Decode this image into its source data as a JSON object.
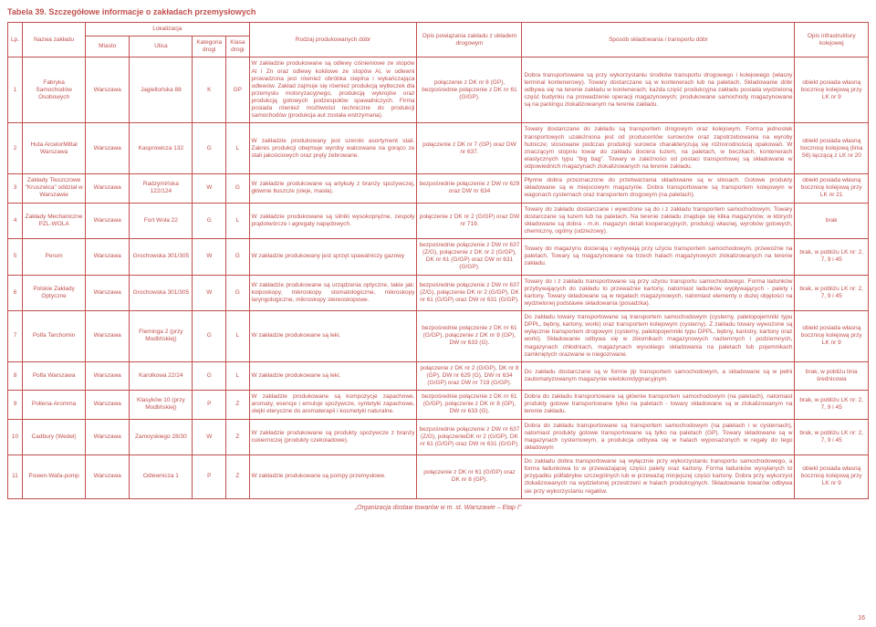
{
  "title": "Tabela 39. Szczegółowe informacje o zakładach przemysłowych",
  "footer": "„Organizacja dostaw towarów w m. st. Warszawie – Etap I”",
  "page_number": "16",
  "headers": {
    "lp": "Lp.",
    "nazwa": "Nazwa zakładu",
    "lokalizacja": "Lokalizacja",
    "miasto": "Miasto",
    "ulica": "Ulica",
    "kategoria": "Kategoria drogi",
    "klasa": "Klasa drogi",
    "rodzaj": "Rodzaj produkowanych dóbr",
    "powiazanie": "Opis powiązania zakładu z układem drogowym",
    "sposob": "Sposób składowania i transportu dóbr",
    "infrastruktura": "Opis infrastruktury kolejowej"
  },
  "rows": [
    {
      "lp": "1",
      "nazwa": "Fabryka Samochodów Osobowych",
      "miasto": "Warszawa",
      "ulica": "Jagiellońska 88",
      "kat": "K",
      "kla": "GP",
      "rodzaj": "W zakładzie produkowane są odlewy ciśnieniowe ze stopów Al i Zn oraz odlewy kokilowe ze stopów Al, w odlewni prowadzona jest również obróbka cieplna i wykańczająca odlewów. Zakład zajmuje się również produkcją wytłoczek dla przemysłu motoryzacyjnego, produkcją wykrojów oraz produkcją gotowych podzespołów spawalniczych. Firma posiada również możliwości techniczne do produkcji samochodów (produkcja aut została wstrzymana).",
      "pow": "połączenie z DK nr 8 (GP), bezpośrednie połączenie z DK nr 61 (G/GP).",
      "spos": "Dobra transportowane są przy wykorzystaniu środków transportu drogowego i kolejowego (własny terminal kontenerowy). Towary dostarczane są w kontenerach lub na paletach. Składowanie dóbr odbywa się na terenie zakładu w kontenerach; każda część produkcyjna zakładu posiada wydzieloną część budynku na prowadzenie operacji magazynowych; produkowane samochody magazynowane są na parkingu zlokalizowanym na terenie zakładu.",
      "infr": "obiekt posiada własną bocznicę kolejową przy LK nr 9"
    },
    {
      "lp": "2",
      "nazwa": "Huta ArcelorMittal Warszawa",
      "miasto": "Warszawa",
      "ulica": "Kasprowicza 132",
      "kat": "G",
      "kla": "L",
      "rodzaj": "W zakładzie produkowany jest szeroki asortyment stali. Zakres produkcji obejmuje wyroby walcowane na gorąco ze stali jakościowych oraz pręty żebrowane.",
      "pow": "połączenie z DK nr 7 (GP) oraz DW nr 637.",
      "spos": "Towary dostarczane do zakładu są transportem drogowym oraz kolejowym. Forma jednostek transportowych uzależniona jest od producentów surowców oraz zapotrzebowania na wyroby hutnicze; stosowane podczas produkcji surowce charakteryzują się różnorodnością opakowań. W znaczącym stopniu towar do zakładu dociera luzem, na paletach, w beczkach, kontenerach elastycznych typu \"big bag\". Towary w zależności od postaci transportowej są składowane w odpowiednich magazynach zlokalizowanych na terenie zakładu.",
      "infr": "obiekt posiada własną bocznicę kolejową (linia S6) łączącą z LK nr 20"
    },
    {
      "lp": "3",
      "nazwa": "Zakłady Tłuszczowe \"Kruszwica\" oddział w Warszawie",
      "miasto": "Warszawa",
      "ulica": "Radzymińska 122/124",
      "kat": "W",
      "kla": "G",
      "rodzaj": "W zakładzie produkowane są artykuły z branży spożywczej, głównie tłuszcze (oleje, masła).",
      "pow": "bezpośrednie połączenie z DW nr 629 oraz DW nr 634",
      "spos": "Płynne dobra przeznaczone do przetwarzania składowane są w silosach. Gotowe produkty składowane są w miejscowym magazynie. Dobra transportowane są transportem kolejowym w wagonach cysternach oraz transportem drogowym (na paletach).",
      "infr": "obiekt posiada własną bocznicę kolejową przy LK nr 21"
    },
    {
      "lp": "4",
      "nazwa": "Zakłady Mechaniczne PZL-WOLA",
      "miasto": "Warszawa",
      "ulica": "Fort Wola 22",
      "kat": "G",
      "kla": "L",
      "rodzaj": "W zakładzie produkowane są silniki wysokoprężne, zespoły prądotwórcze i agregaty napędowych.",
      "pow": "połączenie z DK nr 2 (G/GP) oraz DW nr 719.",
      "spos": "Towary do zakładu dostarczane i wywożone są do i z zakładu transportem samochodowym. Towary dostarczane są luzem lub na paletach. Na terenie zakładu znajduje się kilka magazynów, w których składowane są dobra - m.in. magazyn detali kooperacyjnych, produkcji własnej, wyrobów gotowych, chemiczny, ogólny (odzieżowy).",
      "infr": "brak"
    },
    {
      "lp": "5",
      "nazwa": "Perum",
      "miasto": "Warszawa",
      "ulica": "Grochowska 301/305",
      "kat": "W",
      "kla": "G",
      "rodzaj": "W zakładzie produkowany jest sprzęt spawalniczy gazowy",
      "pow": "bezpośrednie połączenie z DW nr 637 (Z/G), połączenie z DK nr 2 (G/GP), DK nr 61 (G/GP) oraz DW nr 631 (G/GP).",
      "spos": "Towary do magazynu docierają i wybywają przy użyciu transportem samochodowym, przewożne na paletach. Towary są magazynowane na trzech halach magazynowych zlokalizowanych na terenie zakładu.",
      "infr": "brak, w pobliżu LK nr: 2, 7, 9 i 45"
    },
    {
      "lp": "6",
      "nazwa": "Polskie Zakłady Optyczne",
      "miasto": "Warszawa",
      "ulica": "Grochowska 301/305",
      "kat": "W",
      "kla": "G",
      "rodzaj": "W zakładzie produkowane są urządzenia optyczne, takie jak: kolposkopy, mikroskopy stomatologiczne, mikroskopy laryngologiczne, mikroskopy stereoskopowe.",
      "pow": "bezpośrednie połączenie z DW nr 637 (Z/G), połączenie DK nr 2 (G/GP), DK nr 61 (G/GP) oraz DW nr 631 (G/GP).",
      "spos": "Towary do i z zakładu transportowane są przy użyciu transportu samochodowego. Forma ładunków przybywających do zakładu to przeważnie kartony, natomiast ładunków wypływających - palety i kartony. Towary składowane są w regałach magazynowych, natomiast elementy o dużej objętości na wydzielonej podstawie składowania (posadzka).",
      "infr": "brak, w pobliżu LK nr: 2, 7, 9 i 45"
    },
    {
      "lp": "7",
      "nazwa": "Polfa Tarchomin",
      "miasto": "Warszawa",
      "ulica": "Fleminga 2 (przy Modlińskiej)",
      "kat": "G",
      "kla": "L",
      "rodzaj": "W zakładzie produkowane są leki.",
      "pow": "bezpośrednie połączenie z DK nr 61 (G/GP), połączenie z DK nr 8 (GP), DW nr 633 (G).",
      "spos": "Do zakładu towary transportowane są transportem samochodowym (cysterny, paletopojemniki typu DPPL, bębny, kartony, worki) oraz transportem kolejowym (cysterny). Z zakładu towary wywożone są wyłącznie transportem drogowym (cysterny, paletopojemniki typu DPPL, bębny, kanistry, kartony oraz worki). Składowanie odbywa się w zbiornikach magazynowych naziemnych i podziemnych, magazynach chłodniach, magazynach wysokiego składowania na paletach lub pojemnikach zamkniętych orazwane w niegozrwane.",
      "infr": "obiekt posiada własną bocznicę kolejową przy LK nr 9"
    },
    {
      "lp": "8",
      "nazwa": "Polfa Warszawa",
      "miasto": "Warszawa",
      "ulica": "Karolkowa 22/24",
      "kat": "G",
      "kla": "L",
      "rodzaj": "W zakładzie produkowane są leki.",
      "pow": "połączenie z DK nr 2 (G/GP), DK nr 8 (GP), DW nr 629 (G), DW nr 634 (G/GP) oraz DW nr 719 (G/GP).",
      "spos": "Do zakładu dostarczane są w formie jlp transportem samochodowym, a składowane są w pełni zautomatyzowanym magazynie wielokondygnacyjnym.",
      "infr": "brak, w pobliżu linia średnicowa"
    },
    {
      "lp": "9",
      "nazwa": "Pollena-Aromma",
      "miasto": "Warszawa",
      "ulica": "Klasyków 10 (przy Modlińskiej)",
      "kat": "P",
      "kla": "Z",
      "rodzaj": "W zakładzie produkowane są kompozycje zapachowe, aromaty, esencje i emulsje spożywcze, syntetyki zapachowe, olejki eteryczne do aromaterapii i kosmetyki naturalne.",
      "pow": "bezpośrednie połączenie z DK nr 61 (G/GP), połączenie z DK nr 8 (GP), DW nr 633 (G).",
      "spos": "Dobra do zakładu transportowane są głównie transportem samochodowym (na paletach), natomiast produkty gotowe transportowane tylko na paletach - towary składowane są w zlokalizowanym na terenie zakładu.",
      "infr": "brak, w pobliżu LK nr: 2, 7, 9 i 45"
    },
    {
      "lp": "10",
      "nazwa": "Cadbury (Wedel)",
      "miasto": "Warszawa",
      "ulica": "Zamoyskiego 28/30",
      "kat": "W",
      "kla": "Z",
      "rodzaj": "W zakładzie produkowane są produkty spożywcze z branży cukierniczej (produkty czekoladowe).",
      "pow": "bezpośrednie połączenie z DW nr 637 (Z/G), połączenieDK nr 2 (G/GP), DK nr 61 (G/GP) oraz DW nr 631 (G/GP).",
      "spos": "Dobra do zakładu transportowane są transportem samochodowym (na paletach i w cysternach), natomiast produkty gotowe transportowane są tylko na paletach (GP). Towary składowane są w magazynach cysternowym, a produkcja odbywa się w halach wyposażonych w regały do tego składowym",
      "infr": "brak, w pobliżu LK nr: 2, 7, 9 i 45"
    },
    {
      "lp": "11",
      "nazwa": "Powen-Wafa-pomp",
      "miasto": "Warszawa",
      "ulica": "Odlewnicza 1",
      "kat": "P",
      "kla": "Z",
      "rodzaj": "W zakładzie produkowane są pompy przemysłowe.",
      "pow": "połączenie z DK nr 61 (G/GP) oraz DK nr 8 (GP).",
      "spos": "Do zakładu dobra transportowane są wyłącznie przy wykorzystaniu transportu samochodowego, a forma ładunkowa to w przeważającej części palety oraz kartony. Forma ładunków wysyłanych to przypadku półfabrykw szczególnych lub w przeważaj minjejszej części kartony. Dobra przy wykorzyst zlokalizowanych na wydzielonej przestrzeni w halach produkcyjnych. Składowanie towarów odbywa sie przy wykorzystaniu regałów.",
      "infr": "obiekt posiada własną bocznicę kolejową przy LK nr 9"
    }
  ]
}
